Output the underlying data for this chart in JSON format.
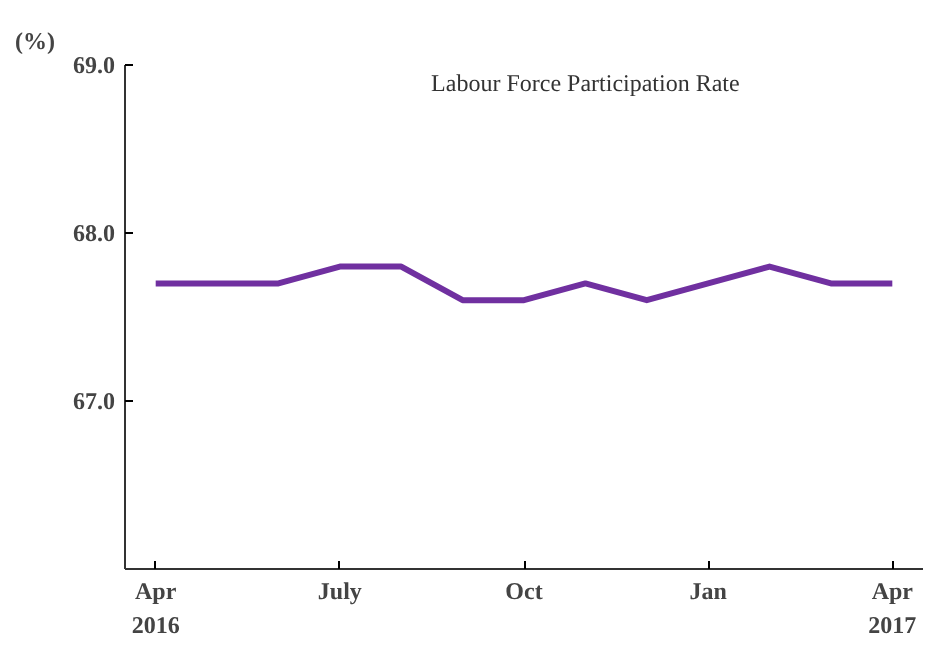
{
  "chart_data": {
    "type": "line",
    "title": "Labour Force Participation Rate",
    "ylabel": "(%)",
    "categories": [
      "Apr\n2016",
      null,
      null,
      "July",
      null,
      null,
      "Oct",
      null,
      null,
      "Jan",
      null,
      null,
      "Apr\n2017"
    ],
    "series": [
      {
        "color": "#7030a0",
        "values": [
          67.7,
          67.7,
          67.7,
          67.8,
          67.8,
          67.6,
          67.6,
          67.7,
          67.6,
          67.7,
          67.8,
          67.7,
          67.7
        ]
      }
    ],
    "ylim": [
      66.0,
      69.0
    ],
    "yticks": [
      {
        "value": 67,
        "label": "67.0"
      },
      {
        "value": 68,
        "label": "68.0"
      },
      {
        "value": 69,
        "label": "69.0"
      }
    ],
    "grid": false,
    "marker": "none",
    "line_style": "solid"
  }
}
